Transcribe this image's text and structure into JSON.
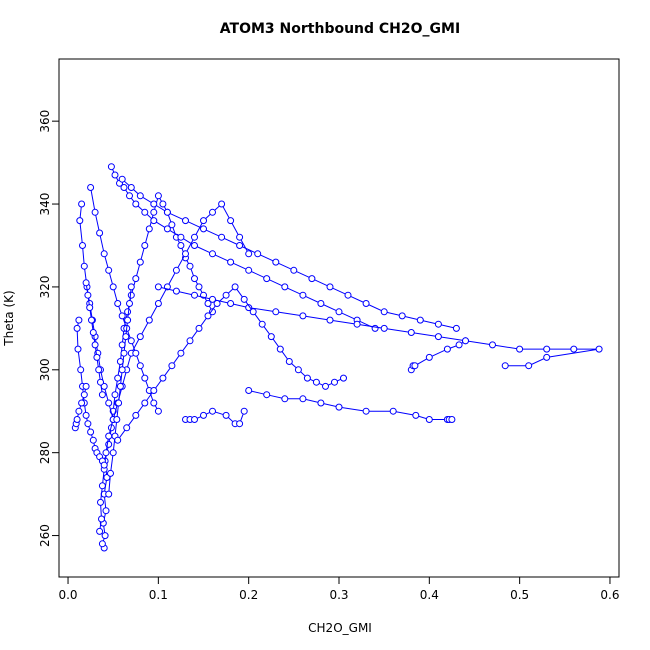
{
  "chart_data": {
    "type": "scatter",
    "title": "ATOM3 Northbound CH2O_GMI",
    "xlabel": "CH2O_GMI",
    "ylabel": "Theta (K)",
    "xlim": [
      -0.01,
      0.61
    ],
    "ylim": [
      250,
      375
    ],
    "xticks": [
      0.0,
      0.1,
      0.2,
      0.3,
      0.4,
      0.5,
      0.6
    ],
    "xtick_labels": [
      "0.0",
      "0.1",
      "0.2",
      "0.3",
      "0.4",
      "0.5",
      "0.6"
    ],
    "yticks": [
      260,
      280,
      300,
      320,
      340,
      360
    ],
    "ytick_labels": [
      "260",
      "280",
      "300",
      "320",
      "340",
      "360"
    ],
    "grid": false,
    "marker": "open-circle",
    "connected": true,
    "color": "#0000ff",
    "series": [
      {
        "x": [
          0.04,
          0.038,
          0.041,
          0.039,
          0.042,
          0.04,
          0.043,
          0.041,
          0.045,
          0.048,
          0.05,
          0.052,
          0.055,
          0.058,
          0.06,
          0.062,
          0.066,
          0.07,
          0.075,
          0.08,
          0.085,
          0.09,
          0.095,
          0.1,
          0.105,
          0.11,
          0.115,
          0.12,
          0.125,
          0.13,
          0.135,
          0.14,
          0.145,
          0.15,
          0.155,
          0.16
        ],
        "y": [
          257,
          258,
          260,
          263,
          266,
          270,
          274,
          278,
          282,
          286,
          290,
          294,
          298,
          302,
          306,
          310,
          314,
          318,
          322,
          326,
          330,
          334,
          338,
          342,
          340,
          338,
          335,
          332,
          330,
          327,
          325,
          322,
          320,
          318,
          316,
          314
        ]
      },
      {
        "x": [
          0.035,
          0.037,
          0.036,
          0.038,
          0.04,
          0.042,
          0.045,
          0.05,
          0.055,
          0.06,
          0.065,
          0.07,
          0.08,
          0.09,
          0.1,
          0.11,
          0.12,
          0.13,
          0.14,
          0.15,
          0.16,
          0.17,
          0.18,
          0.19,
          0.2
        ],
        "y": [
          261,
          264,
          268,
          272,
          276,
          280,
          284,
          288,
          292,
          296,
          300,
          304,
          308,
          312,
          316,
          320,
          324,
          328,
          332,
          336,
          338,
          340,
          336,
          332,
          328
        ]
      },
      {
        "x": [
          0.012,
          0.01,
          0.011,
          0.014,
          0.016,
          0.018,
          0.02,
          0.022,
          0.025,
          0.028,
          0.03,
          0.032,
          0.035,
          0.038,
          0.04
        ],
        "y": [
          312,
          310,
          305,
          300,
          296,
          292,
          289,
          287,
          285,
          283,
          281,
          280,
          279,
          278,
          277
        ]
      },
      {
        "x": [
          0.015,
          0.013,
          0.016,
          0.018,
          0.021,
          0.024,
          0.027,
          0.03,
          0.033,
          0.036,
          0.04,
          0.045,
          0.05
        ],
        "y": [
          340,
          336,
          330,
          325,
          320,
          316,
          312,
          308,
          304,
          300,
          296,
          292,
          288
        ]
      },
      {
        "x": [
          0.048,
          0.052,
          0.057,
          0.062,
          0.068,
          0.075,
          0.085,
          0.095,
          0.11,
          0.125,
          0.14,
          0.16,
          0.18,
          0.2,
          0.22,
          0.24,
          0.26,
          0.28,
          0.3,
          0.32,
          0.34
        ],
        "y": [
          349,
          347,
          345,
          344,
          342,
          340,
          338,
          336,
          334,
          332,
          330,
          328,
          326,
          324,
          322,
          320,
          318,
          316,
          314,
          312,
          310
        ]
      },
      {
        "x": [
          0.06,
          0.07,
          0.08,
          0.095,
          0.11,
          0.13,
          0.15,
          0.17,
          0.19,
          0.21,
          0.23,
          0.25,
          0.27,
          0.29,
          0.31,
          0.33,
          0.35,
          0.37,
          0.39,
          0.41,
          0.43
        ],
        "y": [
          346,
          344,
          342,
          340,
          338,
          336,
          334,
          332,
          330,
          328,
          326,
          324,
          322,
          320,
          318,
          316,
          314,
          313,
          312,
          311,
          310
        ]
      },
      {
        "x": [
          0.1,
          0.12,
          0.14,
          0.16,
          0.18,
          0.2,
          0.23,
          0.26,
          0.29,
          0.32,
          0.35,
          0.38,
          0.41,
          0.44,
          0.47,
          0.5,
          0.53,
          0.56,
          0.588,
          0.53,
          0.51,
          0.484
        ],
        "y": [
          320,
          319,
          318,
          317,
          316,
          315,
          314,
          313,
          312,
          311,
          310,
          309,
          308,
          307,
          306,
          305,
          305,
          305,
          305,
          303,
          301,
          301
        ]
      },
      {
        "x": [
          0.025,
          0.03,
          0.035,
          0.04,
          0.045,
          0.05,
          0.055,
          0.06,
          0.065,
          0.07,
          0.075,
          0.08,
          0.085,
          0.09,
          0.095,
          0.1
        ],
        "y": [
          344,
          338,
          333,
          328,
          324,
          320,
          316,
          313,
          310,
          307,
          304,
          301,
          298,
          295,
          292,
          290
        ]
      },
      {
        "x": [
          0.13,
          0.135,
          0.14,
          0.15,
          0.16,
          0.175,
          0.185,
          0.19,
          0.195
        ],
        "y": [
          288,
          288,
          288,
          289,
          290,
          289,
          287,
          287,
          290
        ]
      },
      {
        "x": [
          0.2,
          0.22,
          0.24,
          0.26,
          0.28,
          0.3,
          0.33,
          0.36,
          0.385,
          0.4,
          0.42,
          0.422,
          0.425
        ],
        "y": [
          295,
          294,
          293,
          293,
          292,
          291,
          290,
          290,
          289,
          288,
          288,
          288,
          288
        ]
      },
      {
        "x": [
          0.38,
          0.382,
          0.384,
          0.4,
          0.42,
          0.433,
          0.44
        ],
        "y": [
          300,
          301,
          301,
          303,
          305,
          306,
          307
        ]
      },
      {
        "x": [
          0.045,
          0.047,
          0.05,
          0.052,
          0.054,
          0.056,
          0.058,
          0.06,
          0.062,
          0.064,
          0.066,
          0.068,
          0.07
        ],
        "y": [
          270,
          275,
          280,
          284,
          288,
          292,
          296,
          300,
          304,
          308,
          312,
          316,
          320
        ]
      },
      {
        "x": [
          0.055,
          0.065,
          0.075,
          0.085,
          0.095,
          0.105,
          0.115,
          0.125,
          0.135,
          0.145,
          0.155,
          0.165,
          0.175,
          0.185,
          0.195,
          0.205,
          0.215,
          0.225,
          0.235,
          0.245,
          0.255,
          0.265,
          0.275,
          0.285,
          0.295,
          0.305
        ],
        "y": [
          283,
          286,
          289,
          292,
          295,
          298,
          301,
          304,
          307,
          310,
          313,
          316,
          318,
          320,
          317,
          314,
          311,
          308,
          305,
          302,
          300,
          298,
          297,
          296,
          297,
          298
        ]
      },
      {
        "x": [
          0.02,
          0.022,
          0.024,
          0.026,
          0.028,
          0.03,
          0.032,
          0.034,
          0.036,
          0.038
        ],
        "y": [
          321,
          318,
          315,
          312,
          309,
          306,
          303,
          300,
          297,
          294
        ]
      },
      {
        "x": [
          0.008,
          0.009,
          0.01,
          0.012,
          0.015,
          0.018,
          0.02
        ],
        "y": [
          286,
          287,
          288,
          290,
          292,
          294,
          296
        ]
      }
    ]
  }
}
